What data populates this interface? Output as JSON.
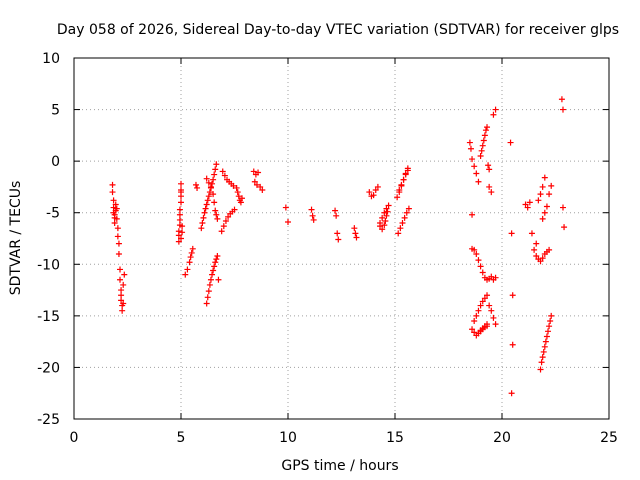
{
  "chart_data": {
    "type": "scatter",
    "title": "Day 058 of 2026, Sidereal Day-to-day VTEC variation (SDTVAR) for receiver glps",
    "xlabel": "GPS time / hours",
    "ylabel": "SDTVAR / TECUs",
    "xlim": [
      0,
      25
    ],
    "ylim": [
      -25,
      10
    ],
    "xticks": [
      0,
      5,
      10,
      15,
      20,
      25
    ],
    "yticks": [
      -25,
      -20,
      -15,
      -10,
      -5,
      0,
      5,
      10
    ],
    "xtick_labels": [
      "0",
      "5",
      "10",
      "15",
      "20",
      "25"
    ],
    "ytick_labels": [
      "-25",
      "-20",
      "-15",
      "-10",
      "-5",
      "0",
      "5",
      "10"
    ],
    "grid": true,
    "marker": "+",
    "color": "#ff0000",
    "series": [
      {
        "name": "SDTVAR",
        "x": [
          1.8,
          1.8,
          1.85,
          1.85,
          1.85,
          1.9,
          1.9,
          1.9,
          1.95,
          1.95,
          2.0,
          2.0,
          2.05,
          2.05,
          2.1,
          2.1,
          2.15,
          2.15,
          2.2,
          2.2,
          2.2,
          2.25,
          2.25,
          2.3,
          2.3,
          2.35,
          4.9,
          4.9,
          4.9,
          4.95,
          4.95,
          4.95,
          4.95,
          5.0,
          5.0,
          5.0,
          5.0,
          5.0,
          5.0,
          5.05,
          5.05,
          5.2,
          5.3,
          5.4,
          5.45,
          5.5,
          5.55,
          5.7,
          5.75,
          5.95,
          6.0,
          6.05,
          6.1,
          6.15,
          6.2,
          6.25,
          6.3,
          6.35,
          6.4,
          6.45,
          6.5,
          6.55,
          6.6,
          6.65,
          6.2,
          6.3,
          6.4,
          6.5,
          6.55,
          6.6,
          6.65,
          6.7,
          6.2,
          6.25,
          6.3,
          6.35,
          6.4,
          6.45,
          6.5,
          6.55,
          6.6,
          6.65,
          6.7,
          6.75,
          6.9,
          7.0,
          7.1,
          7.2,
          7.3,
          7.4,
          7.5,
          6.95,
          7.05,
          7.15,
          7.25,
          7.35,
          7.45,
          7.6,
          7.65,
          7.7,
          7.75,
          7.8,
          7.85,
          8.4,
          8.5,
          8.6,
          8.45,
          8.55,
          8.7,
          8.8,
          9.9,
          10.0,
          11.1,
          11.15,
          11.2,
          12.2,
          12.25,
          12.3,
          12.35,
          13.1,
          13.15,
          13.2,
          13.8,
          13.9,
          14.0,
          14.1,
          14.2,
          14.3,
          14.4,
          14.5,
          14.6,
          14.7,
          14.3,
          14.4,
          14.5,
          14.55,
          14.6,
          14.65,
          15.1,
          15.2,
          15.3,
          15.4,
          15.5,
          15.6,
          15.15,
          15.25,
          15.35,
          15.45,
          15.55,
          15.65,
          15.2,
          15.3,
          15.4,
          15.5,
          15.6,
          18.5,
          18.55,
          18.6,
          18.6,
          18.7,
          18.8,
          18.9,
          19.0,
          19.05,
          19.1,
          19.15,
          19.2,
          19.25,
          19.3,
          19.35,
          19.4,
          18.6,
          18.7,
          18.8,
          18.9,
          19.0,
          19.1,
          19.2,
          19.3,
          19.4,
          19.5,
          19.6,
          19.7,
          18.7,
          18.8,
          18.9,
          19.0,
          19.1,
          19.2,
          19.3,
          19.4,
          19.5,
          19.6,
          19.7,
          18.9,
          19.0,
          19.1,
          19.2,
          19.3,
          19.4,
          19.5,
          19.6,
          19.7,
          18.6,
          18.7,
          18.8,
          18.9,
          19.0,
          19.1,
          19.2,
          19.3,
          20.4,
          20.45,
          20.5,
          20.5,
          20.45,
          21.1,
          21.2,
          21.3,
          21.4,
          21.5,
          21.6,
          21.7,
          21.8,
          21.9,
          22.0,
          21.6,
          21.7,
          21.8,
          21.9,
          22.0,
          22.1,
          22.2,
          21.8,
          21.85,
          21.9,
          21.95,
          22.0,
          22.05,
          22.1,
          22.15,
          22.2,
          22.25,
          22.3,
          21.9,
          22.0,
          22.1,
          22.2,
          22.3,
          22.8,
          22.85,
          22.85,
          22.9
        ],
        "y": [
          -2.3,
          -3.0,
          -3.8,
          -4.5,
          -5.0,
          -5.5,
          -6.0,
          -5.2,
          -4.8,
          -4.2,
          -4.6,
          -5.6,
          -6.5,
          -7.3,
          -8.0,
          -9.0,
          -10.5,
          -11.5,
          -12.5,
          -13.0,
          -13.5,
          -14.0,
          -14.5,
          -13.8,
          -12.0,
          -11.0,
          -7.8,
          -7.2,
          -6.8,
          -6.2,
          -5.7,
          -5.2,
          -4.7,
          -4.0,
          -3.4,
          -2.8,
          -2.2,
          -3.0,
          -7.5,
          -6.9,
          -6.3,
          -11.0,
          -10.5,
          -9.8,
          -9.3,
          -8.9,
          -8.5,
          -2.3,
          -2.6,
          -6.5,
          -6.0,
          -5.5,
          -5.0,
          -4.6,
          -4.2,
          -3.8,
          -3.4,
          -3.0,
          -2.6,
          -2.2,
          -1.8,
          -1.3,
          -0.8,
          -0.3,
          -1.7,
          -2.1,
          -2.5,
          -3.2,
          -4.0,
          -4.8,
          -5.2,
          -5.6,
          -13.8,
          -13.2,
          -12.6,
          -12.0,
          -11.5,
          -11.0,
          -10.6,
          -10.2,
          -9.8,
          -9.5,
          -9.2,
          -11.5,
          -6.8,
          -6.3,
          -5.8,
          -5.4,
          -5.1,
          -4.9,
          -4.7,
          -1.0,
          -1.4,
          -1.8,
          -2.0,
          -2.2,
          -2.4,
          -2.6,
          -3.0,
          -3.4,
          -3.8,
          -4.0,
          -3.6,
          -1.0,
          -1.3,
          -1.1,
          -2.0,
          -2.3,
          -2.5,
          -2.8,
          -4.5,
          -5.9,
          -4.7,
          -5.3,
          -5.7,
          -4.8,
          -5.3,
          -7.0,
          -7.6,
          -6.5,
          -7.0,
          -7.4,
          -3.0,
          -3.4,
          -3.3,
          -2.8,
          -2.5,
          -6.0,
          -5.5,
          -5.0,
          -4.6,
          -4.3,
          -6.3,
          -6.6,
          -6.2,
          -5.8,
          -5.3,
          -4.9,
          -3.5,
          -2.8,
          -2.3,
          -1.8,
          -1.2,
          -0.7,
          -7.0,
          -6.5,
          -6.0,
          -5.5,
          -5.0,
          -4.6,
          -3.0,
          -2.4,
          -1.8,
          -1.3,
          -0.9,
          1.8,
          1.2,
          0.2,
          -5.2,
          -0.5,
          -1.2,
          -2.0,
          0.5,
          1.0,
          1.5,
          2.0,
          2.5,
          3.0,
          3.3,
          -0.4,
          -0.8,
          -8.5,
          -8.6,
          -9.0,
          -9.6,
          -10.2,
          -10.8,
          -11.3,
          -11.5,
          -11.4,
          -11.2,
          -11.5,
          -11.3,
          -15.5,
          -15.0,
          -14.5,
          -14.0,
          -13.6,
          -13.3,
          -13.0,
          -14.0,
          -14.5,
          -15.2,
          -15.8,
          -16.7,
          -16.5,
          -16.3,
          -16.1,
          -16.0,
          -2.5,
          -3.0,
          4.5,
          5.0,
          -16.3,
          -16.6,
          -16.9,
          -16.7,
          -16.4,
          -16.2,
          -16.0,
          -15.8,
          1.8,
          -7.0,
          -13.0,
          -17.8,
          -22.5,
          -4.2,
          -4.5,
          -4.0,
          -7.0,
          -8.6,
          -8.0,
          -3.8,
          -3.2,
          -2.5,
          -1.6,
          -9.2,
          -9.5,
          -9.7,
          -9.4,
          -9.0,
          -8.8,
          -8.6,
          -20.2,
          -19.5,
          -19.0,
          -18.5,
          -18.0,
          -17.5,
          -17.0,
          -16.5,
          -16.0,
          -15.5,
          -15.0,
          -5.6,
          -5.0,
          -4.4,
          -3.2,
          -2.4,
          6.0,
          5.0,
          -4.5,
          -6.4
        ]
      }
    ]
  }
}
